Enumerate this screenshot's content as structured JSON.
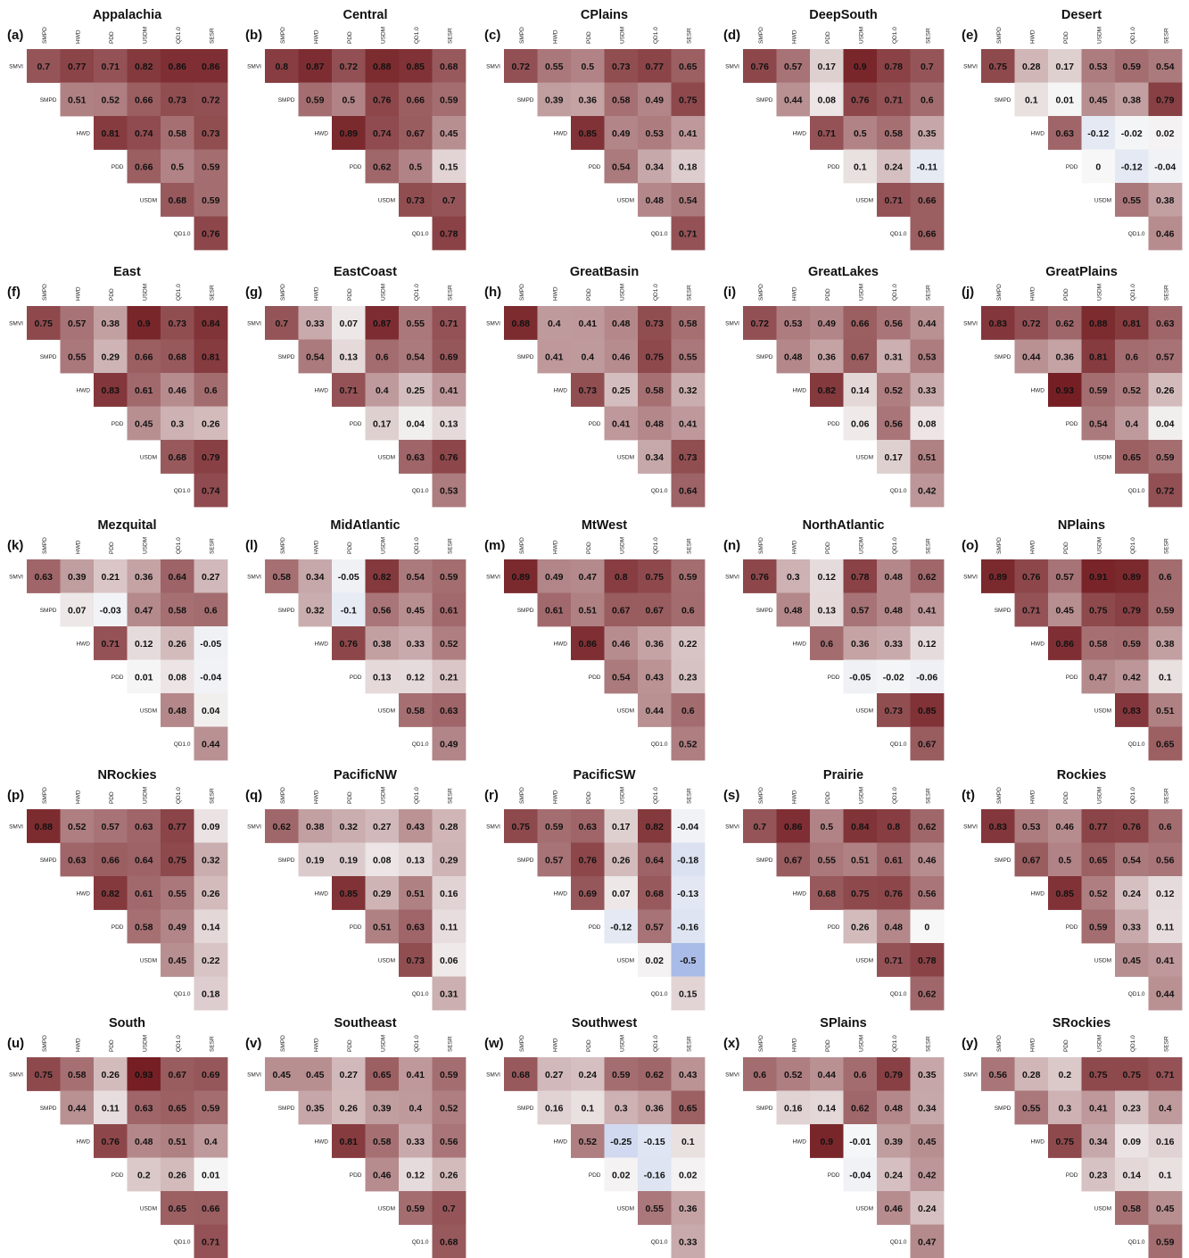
{
  "chart_data": {
    "type": "heatmap",
    "rows": [
      "SMVI",
      "SMPD",
      "HWD",
      "PDD",
      "USDM",
      "QD1.0"
    ],
    "cols": [
      "SMPD",
      "HWD",
      "PDD",
      "USDM",
      "QD1.0",
      "SESR"
    ],
    "color_scale": {
      "negative": "#5a7fd6",
      "zero": "#f7f7f7",
      "positive": "#6b0f14",
      "vmin": -1,
      "vmax": 1
    },
    "panels": [
      {
        "letter": "(a)",
        "title": "Appalachia",
        "values": [
          [
            0.7,
            0.77,
            0.71,
            0.82,
            0.86,
            0.86
          ],
          [
            0.51,
            0.52,
            0.66,
            0.73,
            0.72
          ],
          [
            0.81,
            0.74,
            0.58,
            0.73
          ],
          [
            0.66,
            0.5,
            0.59
          ],
          [
            0.68,
            0.59
          ],
          [
            0.76
          ]
        ]
      },
      {
        "letter": "(b)",
        "title": "Central",
        "values": [
          [
            0.8,
            0.87,
            0.72,
            0.88,
            0.85,
            0.68
          ],
          [
            0.59,
            0.5,
            0.76,
            0.66,
            0.59
          ],
          [
            0.89,
            0.74,
            0.67,
            0.45
          ],
          [
            0.62,
            0.5,
            0.15
          ],
          [
            0.73,
            0.7
          ],
          [
            0.78
          ]
        ]
      },
      {
        "letter": "(c)",
        "title": "CPlains",
        "values": [
          [
            0.72,
            0.55,
            0.5,
            0.73,
            0.77,
            0.65
          ],
          [
            0.39,
            0.36,
            0.58,
            0.49,
            0.75
          ],
          [
            0.85,
            0.49,
            0.53,
            0.41
          ],
          [
            0.54,
            0.34,
            0.18
          ],
          [
            0.48,
            0.54
          ],
          [
            0.71
          ]
        ]
      },
      {
        "letter": "(d)",
        "title": "DeepSouth",
        "values": [
          [
            0.76,
            0.57,
            0.17,
            0.9,
            0.78,
            0.7
          ],
          [
            0.44,
            0.08,
            0.76,
            0.71,
            0.6
          ],
          [
            0.71,
            0.5,
            0.58,
            0.35
          ],
          [
            0.1,
            0.24,
            -0.11
          ],
          [
            0.71,
            0.66
          ],
          [
            0.66
          ]
        ]
      },
      {
        "letter": "(e)",
        "title": "Desert",
        "values": [
          [
            0.75,
            0.28,
            0.17,
            0.53,
            0.59,
            0.54
          ],
          [
            0.1,
            0.01,
            0.45,
            0.38,
            0.79
          ],
          [
            0.63,
            -0.12,
            -0.02,
            0.02
          ],
          [
            0,
            -0.12,
            -0.04
          ],
          [
            0.55,
            0.38
          ],
          [
            0.46
          ]
        ]
      },
      {
        "letter": "(f)",
        "title": "East",
        "values": [
          [
            0.75,
            0.57,
            0.38,
            0.9,
            0.73,
            0.84
          ],
          [
            0.55,
            0.29,
            0.66,
            0.68,
            0.81
          ],
          [
            0.83,
            0.61,
            0.46,
            0.6
          ],
          [
            0.45,
            0.3,
            0.26
          ],
          [
            0.68,
            0.79
          ],
          [
            0.74
          ]
        ]
      },
      {
        "letter": "(g)",
        "title": "EastCoast",
        "values": [
          [
            0.7,
            0.33,
            0.07,
            0.87,
            0.55,
            0.71
          ],
          [
            0.54,
            0.13,
            0.6,
            0.54,
            0.69
          ],
          [
            0.71,
            0.4,
            0.25,
            0.41
          ],
          [
            0.17,
            0.04,
            0.13
          ],
          [
            0.63,
            0.76
          ],
          [
            0.53
          ]
        ]
      },
      {
        "letter": "(h)",
        "title": "GreatBasin",
        "values": [
          [
            0.88,
            0.4,
            0.41,
            0.48,
            0.73,
            0.58
          ],
          [
            0.41,
            0.4,
            0.46,
            0.75,
            0.55
          ],
          [
            0.73,
            0.25,
            0.58,
            0.32
          ],
          [
            0.41,
            0.48,
            0.41
          ],
          [
            0.34,
            0.73
          ],
          [
            0.64
          ]
        ]
      },
      {
        "letter": "(i)",
        "title": "GreatLakes",
        "values": [
          [
            0.72,
            0.53,
            0.49,
            0.66,
            0.56,
            0.44
          ],
          [
            0.48,
            0.36,
            0.67,
            0.31,
            0.53
          ],
          [
            0.82,
            0.14,
            0.52,
            0.33
          ],
          [
            0.06,
            0.56,
            0.08
          ],
          [
            0.17,
            0.51
          ],
          [
            0.42
          ]
        ]
      },
      {
        "letter": "(j)",
        "title": "GreatPlains",
        "values": [
          [
            0.83,
            0.72,
            0.62,
            0.88,
            0.81,
            0.63
          ],
          [
            0.44,
            0.36,
            0.81,
            0.6,
            0.57
          ],
          [
            0.93,
            0.59,
            0.52,
            0.26
          ],
          [
            0.54,
            0.4,
            0.04
          ],
          [
            0.65,
            0.59
          ],
          [
            0.72
          ]
        ]
      },
      {
        "letter": "(k)",
        "title": "Mezquital",
        "values": [
          [
            0.63,
            0.39,
            0.21,
            0.36,
            0.64,
            0.27
          ],
          [
            0.07,
            -0.03,
            0.47,
            0.58,
            0.6
          ],
          [
            0.71,
            0.12,
            0.26,
            -0.05
          ],
          [
            0.01,
            0.08,
            -0.04
          ],
          [
            0.48,
            0.04
          ],
          [
            0.44
          ]
        ]
      },
      {
        "letter": "(l)",
        "title": "MidAtlantic",
        "values": [
          [
            0.58,
            0.34,
            -0.05,
            0.82,
            0.54,
            0.59
          ],
          [
            0.32,
            -0.1,
            0.56,
            0.45,
            0.61
          ],
          [
            0.76,
            0.38,
            0.33,
            0.52
          ],
          [
            0.13,
            0.12,
            0.21
          ],
          [
            0.58,
            0.63
          ],
          [
            0.49
          ]
        ]
      },
      {
        "letter": "(m)",
        "title": "MtWest",
        "values": [
          [
            0.89,
            0.49,
            0.47,
            0.8,
            0.75,
            0.59
          ],
          [
            0.61,
            0.51,
            0.67,
            0.67,
            0.6
          ],
          [
            0.86,
            0.46,
            0.36,
            0.22
          ],
          [
            0.54,
            0.43,
            0.23
          ],
          [
            0.44,
            0.6
          ],
          [
            0.52
          ]
        ]
      },
      {
        "letter": "(n)",
        "title": "NorthAtlantic",
        "values": [
          [
            0.76,
            0.3,
            0.12,
            0.78,
            0.48,
            0.62
          ],
          [
            0.48,
            0.13,
            0.57,
            0.48,
            0.41
          ],
          [
            0.6,
            0.36,
            0.33,
            0.12
          ],
          [
            -0.05,
            -0.02,
            -0.06
          ],
          [
            0.73,
            0.85
          ],
          [
            0.67
          ]
        ]
      },
      {
        "letter": "(o)",
        "title": "NPlains",
        "values": [
          [
            0.89,
            0.76,
            0.57,
            0.91,
            0.89,
            0.6
          ],
          [
            0.71,
            0.45,
            0.75,
            0.79,
            0.59
          ],
          [
            0.86,
            0.58,
            0.59,
            0.38
          ],
          [
            0.47,
            0.42,
            0.1
          ],
          [
            0.83,
            0.51
          ],
          [
            0.65
          ]
        ]
      },
      {
        "letter": "(p)",
        "title": "NRockies",
        "values": [
          [
            0.88,
            0.52,
            0.57,
            0.63,
            0.77,
            0.09
          ],
          [
            0.63,
            0.66,
            0.64,
            0.75,
            0.32
          ],
          [
            0.82,
            0.61,
            0.55,
            0.26
          ],
          [
            0.58,
            0.49,
            0.14
          ],
          [
            0.45,
            0.22
          ],
          [
            0.18
          ]
        ]
      },
      {
        "letter": "(q)",
        "title": "PacificNW",
        "values": [
          [
            0.62,
            0.38,
            0.32,
            0.27,
            0.43,
            0.28
          ],
          [
            0.19,
            0.19,
            0.08,
            0.13,
            0.29
          ],
          [
            0.85,
            0.29,
            0.51,
            0.16
          ],
          [
            0.51,
            0.63,
            0.11
          ],
          [
            0.73,
            0.06
          ],
          [
            0.31
          ]
        ]
      },
      {
        "letter": "(r)",
        "title": "PacificSW",
        "values": [
          [
            0.75,
            0.59,
            0.63,
            0.17,
            0.82,
            -0.04
          ],
          [
            0.57,
            0.76,
            0.26,
            0.64,
            -0.18
          ],
          [
            0.69,
            0.07,
            0.68,
            -0.13
          ],
          [
            -0.12,
            0.57,
            -0.16
          ],
          [
            0.02,
            -0.5
          ],
          [
            0.15
          ]
        ]
      },
      {
        "letter": "(s)",
        "title": "Prairie",
        "values": [
          [
            0.7,
            0.86,
            0.5,
            0.84,
            0.8,
            0.62
          ],
          [
            0.67,
            0.55,
            0.51,
            0.61,
            0.46
          ],
          [
            0.68,
            0.75,
            0.76,
            0.56
          ],
          [
            0.26,
            0.48,
            0
          ],
          [
            0.71,
            0.78
          ],
          [
            0.62
          ]
        ]
      },
      {
        "letter": "(t)",
        "title": "Rockies",
        "values": [
          [
            0.83,
            0.53,
            0.46,
            0.77,
            0.76,
            0.6
          ],
          [
            0.67,
            0.5,
            0.65,
            0.54,
            0.56
          ],
          [
            0.85,
            0.52,
            0.24,
            0.12
          ],
          [
            0.59,
            0.33,
            0.11
          ],
          [
            0.45,
            0.41
          ],
          [
            0.44
          ]
        ]
      },
      {
        "letter": "(u)",
        "title": "South",
        "values": [
          [
            0.75,
            0.58,
            0.26,
            0.93,
            0.67,
            0.69
          ],
          [
            0.44,
            0.11,
            0.63,
            0.65,
            0.59
          ],
          [
            0.76,
            0.48,
            0.51,
            0.4
          ],
          [
            0.2,
            0.26,
            0.01
          ],
          [
            0.65,
            0.66
          ],
          [
            0.71
          ]
        ]
      },
      {
        "letter": "(v)",
        "title": "Southeast",
        "values": [
          [
            0.45,
            0.45,
            0.27,
            0.65,
            0.41,
            0.59
          ],
          [
            0.35,
            0.26,
            0.39,
            0.4,
            0.52
          ],
          [
            0.81,
            0.58,
            0.33,
            0.56
          ],
          [
            0.46,
            0.12,
            0.26
          ],
          [
            0.59,
            0.7
          ],
          [
            0.68
          ]
        ]
      },
      {
        "letter": "(w)",
        "title": "Southwest",
        "values": [
          [
            0.68,
            0.27,
            0.24,
            0.59,
            0.62,
            0.43
          ],
          [
            0.16,
            0.1,
            0.3,
            0.36,
            0.65
          ],
          [
            0.52,
            -0.25,
            -0.15,
            0.1
          ],
          [
            0.02,
            -0.16,
            0.02
          ],
          [
            0.55,
            0.36
          ],
          [
            0.33
          ]
        ]
      },
      {
        "letter": "(x)",
        "title": "SPlains",
        "values": [
          [
            0.6,
            0.52,
            0.44,
            0.6,
            0.79,
            0.35
          ],
          [
            0.16,
            0.14,
            0.62,
            0.48,
            0.34
          ],
          [
            0.9,
            -0.01,
            0.39,
            0.45
          ],
          [
            -0.04,
            0.24,
            0.42
          ],
          [
            0.46,
            0.24
          ],
          [
            0.47
          ]
        ]
      },
      {
        "letter": "(y)",
        "title": "SRockies",
        "values": [
          [
            0.56,
            0.28,
            0.2,
            0.75,
            0.75,
            0.71
          ],
          [
            0.55,
            0.3,
            0.41,
            0.23,
            0.4
          ],
          [
            0.75,
            0.34,
            0.09,
            0.16
          ],
          [
            0.23,
            0.14,
            0.1
          ],
          [
            0.58,
            0.45
          ],
          [
            0.59
          ]
        ]
      }
    ]
  }
}
